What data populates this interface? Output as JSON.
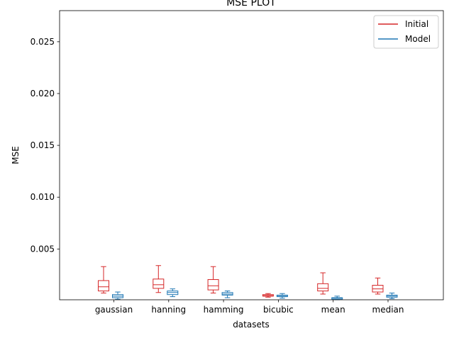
{
  "chart_data": {
    "type": "boxplot",
    "title": "MSE PLOT",
    "xlabel": "datasets",
    "ylabel": "MSE",
    "ylim": [
      0.0001,
      0.028
    ],
    "yticks": [
      {
        "value": 0.005,
        "label": "0.005"
      },
      {
        "value": 0.01,
        "label": "0.010"
      },
      {
        "value": 0.015,
        "label": "0.015"
      },
      {
        "value": 0.02,
        "label": "0.020"
      },
      {
        "value": 0.025,
        "label": "0.025"
      }
    ],
    "categories": [
      "gaussian",
      "hanning",
      "hamming",
      "bicubic",
      "mean",
      "median"
    ],
    "legend": {
      "placement": "top-right"
    },
    "series": [
      {
        "name": "Initial",
        "color": "#d62728",
        "boxes": [
          {
            "whisker_low": 0.00075,
            "q1": 0.00095,
            "median": 0.00135,
            "q3": 0.00195,
            "whisker_high": 0.0033
          },
          {
            "whisker_low": 0.0008,
            "q1": 0.0012,
            "median": 0.00155,
            "q3": 0.0021,
            "whisker_high": 0.0034
          },
          {
            "whisker_low": 0.00075,
            "q1": 0.00105,
            "median": 0.00145,
            "q3": 0.00205,
            "whisker_high": 0.0033
          },
          {
            "whisker_low": 0.00035,
            "q1": 0.00045,
            "median": 0.0005,
            "q3": 0.0006,
            "whisker_high": 0.0007
          },
          {
            "whisker_low": 0.00065,
            "q1": 0.00095,
            "median": 0.0012,
            "q3": 0.00165,
            "whisker_high": 0.0027
          },
          {
            "whisker_low": 0.00065,
            "q1": 0.00085,
            "median": 0.00115,
            "q3": 0.0015,
            "whisker_high": 0.0022
          }
        ]
      },
      {
        "name": "Model",
        "color": "#1f77b4",
        "boxes": [
          {
            "whisker_low": 0.00015,
            "q1": 0.0003,
            "median": 0.00045,
            "q3": 0.0006,
            "whisker_high": 0.00085
          },
          {
            "whisker_low": 0.0004,
            "q1": 0.0006,
            "median": 0.0008,
            "q3": 0.00095,
            "whisker_high": 0.00115
          },
          {
            "whisker_low": 0.0003,
            "q1": 0.00055,
            "median": 0.00065,
            "q3": 0.0008,
            "whisker_high": 0.00095
          },
          {
            "whisker_low": 0.00025,
            "q1": 0.0004,
            "median": 0.00045,
            "q3": 0.00055,
            "whisker_high": 0.0007
          },
          {
            "whisker_low": 0.0001,
            "q1": 0.00015,
            "median": 0.00025,
            "q3": 0.0003,
            "whisker_high": 0.00045
          },
          {
            "whisker_low": 0.0002,
            "q1": 0.00035,
            "median": 0.00045,
            "q3": 0.00055,
            "whisker_high": 0.00075
          }
        ]
      }
    ]
  }
}
